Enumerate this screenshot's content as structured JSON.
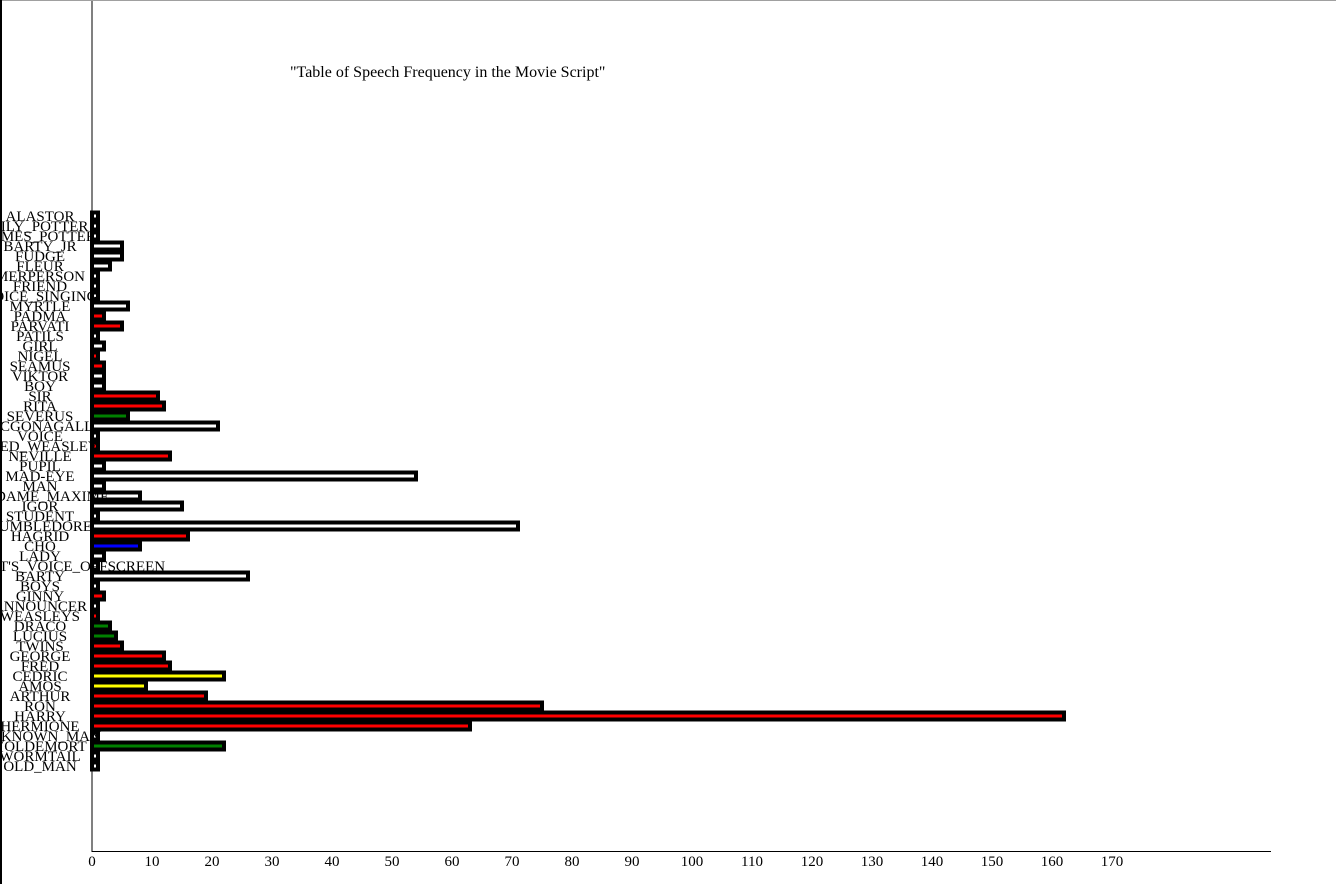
{
  "chart_data": {
    "type": "bar",
    "orientation": "horizontal",
    "title": "\"Table of Speech Frequency in the Movie Script\"",
    "xlabel": "",
    "ylabel": "",
    "xlim": [
      0,
      170
    ],
    "x_ticks": [
      0,
      10,
      20,
      30,
      40,
      50,
      60,
      70,
      80,
      90,
      100,
      110,
      120,
      130,
      140,
      150,
      160,
      170
    ],
    "grid": false,
    "legend": "none",
    "categories": [
      "ALASTOR",
      "LILY_POTTER",
      "JAMES_POTTER",
      "BARTY_JR",
      "FUDGE",
      "FLEUR",
      "MERPERSON",
      "FRIEND",
      "VOICE_SINGING",
      "MYRTLE",
      "PADMA",
      "PARVATI",
      "PATILS",
      "GIRL",
      "NIGEL",
      "SEAMUS",
      "VIKTOR",
      "BOY",
      "SIR",
      "RITA",
      "SEVERUS",
      "MCGONAGALL",
      "VOICE",
      "FRED_WEASLEY",
      "NEVILLE",
      "PUPIL",
      "MAD-EYE",
      "MAN",
      "MADAME_MAXIME",
      "IGOR",
      "STUDENT",
      "DUMBLEDORE",
      "HAGRID",
      "CHO",
      "LADY",
      "VOLDEMORT'S_VOICE_OFFSCREEN",
      "BARTY",
      "BOYS",
      "GINNY",
      "ANNOUNCER",
      "WEASLEYS",
      "DRACO",
      "LUCIUS",
      "TWINS",
      "GEORGE",
      "FRED",
      "CEDRIC",
      "AMOS",
      "ARTHUR",
      "RON",
      "HARRY",
      "HERMIONE",
      "UNKNOWN_MAN",
      "VOLDEMORT",
      "WORMTAIL",
      "OLD_MAN"
    ],
    "values": [
      1,
      1,
      1,
      5,
      5,
      3,
      1,
      1,
      1,
      6,
      2,
      5,
      1,
      2,
      1,
      2,
      2,
      2,
      11,
      12,
      6,
      21,
      1,
      1,
      13,
      2,
      54,
      2,
      8,
      15,
      1,
      71,
      16,
      8,
      2,
      1,
      26,
      1,
      2,
      1,
      1,
      3,
      4,
      5,
      12,
      13,
      22,
      9,
      19,
      75,
      162,
      63,
      1,
      22,
      1,
      1
    ],
    "colors": [
      "#ffffff",
      "#ffffff",
      "#ffffff",
      "#ffffff",
      "#ffffff",
      "#ffffff",
      "#ffffff",
      "#ffffff",
      "#ffffff",
      "#ffffff",
      "#ff0000",
      "#ff0000",
      "#ffffff",
      "#ffffff",
      "#ff0000",
      "#ff0000",
      "#ffffff",
      "#ffffff",
      "#ff0000",
      "#ff0000",
      "#008000",
      "#ffffff",
      "#ffffff",
      "#ff0000",
      "#ff0000",
      "#ffffff",
      "#ffffff",
      "#ffffff",
      "#ffffff",
      "#ffffff",
      "#ffffff",
      "#ffffff",
      "#ff0000",
      "#0000ff",
      "#ffffff",
      "#ffffff",
      "#ffffff",
      "#ffffff",
      "#ff0000",
      "#ffffff",
      "#ff0000",
      "#008000",
      "#008000",
      "#ff0000",
      "#ff0000",
      "#ff0000",
      "#ffff00",
      "#ffff00",
      "#ff0000",
      "#ff0000",
      "#ff0000",
      "#ff0000",
      "#ffffff",
      "#008000",
      "#ffffff",
      "#ffffff"
    ],
    "bar_stroke": "#000000"
  }
}
